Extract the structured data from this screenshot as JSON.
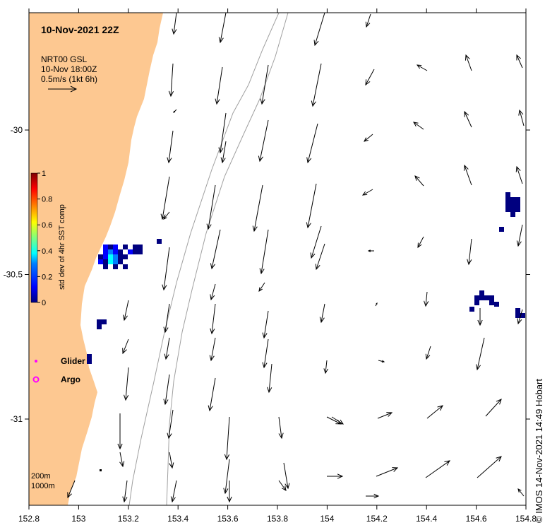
{
  "title": "10-Nov-2021 22Z",
  "velocity_legend": {
    "line1": "NRT00 GSL",
    "line2": "10-Nov 18:00Z",
    "line3": "0.5m/s (1kt 6h)"
  },
  "colorbar": {
    "label": "std dev of 4hr SST comp",
    "ticks": [
      "0",
      "0.2",
      "0.4",
      "0.6",
      "0.8",
      "1"
    ],
    "colors": [
      "#00007f",
      "#0000ff",
      "#007fff",
      "#00ffff",
      "#7fff7f",
      "#ffff00",
      "#ff7f00",
      "#ff0000",
      "#7f0000"
    ]
  },
  "markers": {
    "glider": "Glider",
    "argo": "Argo",
    "color": "#ff00ff"
  },
  "isobaths": {
    "a": "200m",
    "b": "1000m"
  },
  "axes": {
    "x_ticks": [
      "152.8",
      "153",
      "153.2",
      "153.4",
      "153.6",
      "153.8",
      "154",
      "154.2",
      "154.4",
      "154.6",
      "154.8"
    ],
    "y_ticks": [
      "-30",
      "-30.5",
      "-31"
    ]
  },
  "credit": "© IMOS 14-Nov-2021 14:49 Hobart",
  "colors": {
    "land": "#fdc891",
    "sst_blob": "#00007f",
    "depth_contour": "#a0a0a0"
  }
}
